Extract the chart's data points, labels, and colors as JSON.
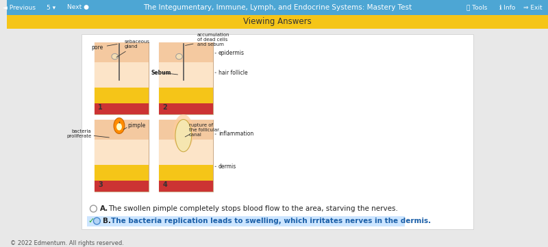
{
  "bg_top_bar": "#4da6d4",
  "bg_yellow_bar": "#f5c518",
  "bg_content": "#e8e8e8",
  "bg_white_panel": "#ffffff",
  "top_bar_text": "The Integumentary, Immune, Lymph, and Endocrine Systems: Mastery Test",
  "top_bar_left": [
    "Previous",
    "5",
    "Next"
  ],
  "top_bar_right": [
    "Tools",
    "Info",
    "Exit"
  ],
  "yellow_bar_text": "Viewing Answers",
  "answer_a_text": "The swollen pimple completely stops blood flow to the area, starving the nerves.",
  "answer_b_text": "The bacteria replication leads to swelling, which irritates nerves in the dermis.",
  "answer_b_highlight": "#cce5ff",
  "answer_b_color": "#1a5fa8",
  "footer_text": "© 2022 Edmentum. All rights reserved.",
  "image_labels_1": [
    "pore",
    "sebaceous\ngland",
    "accumulation\nof dead cells\nand sebum"
  ],
  "image_labels_2": [
    "epidermis",
    "Sebum",
    "hair follicle"
  ],
  "image_labels_3": [
    "bacteria\nproliferate",
    "pimple"
  ],
  "image_labels_4": [
    "rupture of\nthe follicular\ncanal",
    "inflammation",
    "dermis"
  ],
  "num_labels": [
    "1",
    "2",
    "3",
    "4"
  ]
}
